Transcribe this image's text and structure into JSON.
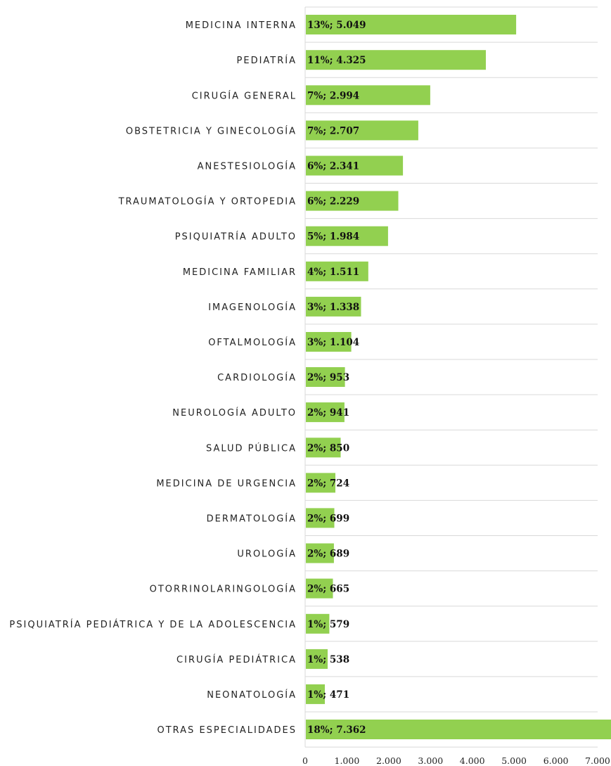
{
  "chart_data": {
    "type": "bar",
    "orientation": "horizontal",
    "categories": [
      "MEDICINA INTERNA",
      "PEDIATRÍA",
      "CIRUGÍA GENERAL",
      "OBSTETRICIA Y GINECOLOGÍA",
      "ANESTESIOLOGÍA",
      "TRAUMATOLOGÍA Y ORTOPEDIA",
      "PSIQUIATRÍA ADULTO",
      "MEDICINA FAMILIAR",
      "IMAGENOLOGÍA",
      "OFTALMOLOGÍA",
      "CARDIOLOGÍA",
      "NEUROLOGÍA ADULTO",
      "SALUD PÚBLICA",
      "MEDICINA DE URGENCIA",
      "DERMATOLOGÍA",
      "UROLOGÍA",
      "OTORRINOLARINGOLOGÍA",
      "PSIQUIATRÍA PEDIÁTRICA Y DE LA ADOLESCENCIA",
      "CIRUGÍA PEDIÁTRICA",
      "NEONATOLOGÍA",
      "OTRAS ESPECIALIDADES"
    ],
    "values": [
      5049,
      4325,
      2994,
      2707,
      2341,
      2229,
      1984,
      1511,
      1338,
      1104,
      953,
      941,
      850,
      724,
      699,
      689,
      665,
      579,
      538,
      471,
      7362
    ],
    "data_labels": [
      "13%; 5.049",
      "11%; 4.325",
      "7%; 2.994",
      "7%; 2.707",
      "6%; 2.341",
      "6%; 2.229",
      "5%; 1.984",
      "4%; 1.511",
      "3%; 1.338",
      "3%; 1.104",
      "2%; 953",
      "2%; 941",
      "2%; 850",
      "2%; 724",
      "2%; 699",
      "2%; 689",
      "2%; 665",
      "1%; 579",
      "1%; 538",
      "1%; 471",
      "18%; 7.362"
    ],
    "xlim": [
      0,
      7000
    ],
    "x_ticks": [
      0,
      1000,
      2000,
      3000,
      4000,
      5000,
      6000,
      7000
    ],
    "x_tick_labels": [
      "0",
      "1.000",
      "2.000",
      "3.000",
      "4.000",
      "5.000",
      "6.000",
      "7.000"
    ],
    "grid": true,
    "title": "",
    "xlabel": "",
    "ylabel": "",
    "colors": {
      "bar": "#92d050",
      "grid": "#d9d9d9",
      "text": "#222222"
    }
  }
}
